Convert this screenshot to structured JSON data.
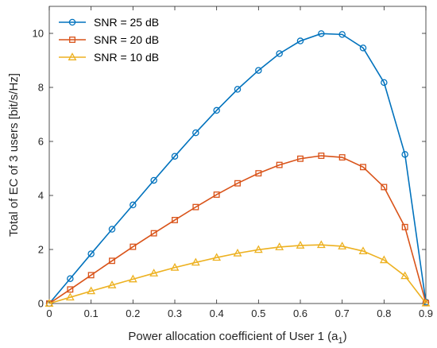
{
  "chart_data": {
    "type": "line",
    "xlabel": "Power allocation coefficient of User 1 (a",
    "xlabel_subscript": "1",
    "xlabel_suffix": ")",
    "ylabel": "Total of EC of 3 users [bit/s/Hz]",
    "xlim": [
      0,
      0.9
    ],
    "ylim": [
      0,
      11
    ],
    "x_ticks": [
      0,
      0.1,
      0.2,
      0.3,
      0.4,
      0.5,
      0.6,
      0.7,
      0.8,
      0.9
    ],
    "x_tick_labels": [
      "0",
      "0.1",
      "0.2",
      "0.3",
      "0.4",
      "0.5",
      "0.6",
      "0.7",
      "0.8",
      "0.9"
    ],
    "y_ticks": [
      0,
      2,
      4,
      6,
      8,
      10
    ],
    "y_tick_labels": [
      "0",
      "2",
      "4",
      "6",
      "8",
      "10"
    ],
    "grid": false,
    "legend_position": "top-left",
    "x": [
      0,
      0.05,
      0.1,
      0.15,
      0.2,
      0.25,
      0.3,
      0.35,
      0.4,
      0.45,
      0.5,
      0.55,
      0.6,
      0.65,
      0.7,
      0.75,
      0.8,
      0.85,
      0.9
    ],
    "series": [
      {
        "name": "SNR = 25 dB",
        "color": "#0072BD",
        "marker": "circle",
        "values": [
          0.0,
          0.92,
          1.84,
          2.75,
          3.65,
          4.56,
          5.45,
          6.32,
          7.15,
          7.93,
          8.63,
          9.25,
          9.72,
          9.99,
          9.96,
          9.46,
          8.18,
          5.52,
          0.05
        ]
      },
      {
        "name": "SNR = 20 dB",
        "color": "#D95319",
        "marker": "square",
        "values": [
          0.0,
          0.52,
          1.05,
          1.58,
          2.1,
          2.6,
          3.09,
          3.57,
          4.03,
          4.45,
          4.82,
          5.13,
          5.36,
          5.47,
          5.41,
          5.05,
          4.31,
          2.83,
          0.02
        ]
      },
      {
        "name": "SNR = 10 dB",
        "color": "#EDB120",
        "marker": "triangle",
        "values": [
          0.0,
          0.23,
          0.46,
          0.68,
          0.9,
          1.12,
          1.33,
          1.52,
          1.7,
          1.86,
          1.99,
          2.09,
          2.15,
          2.17,
          2.12,
          1.94,
          1.61,
          1.02,
          0.01
        ]
      }
    ]
  }
}
